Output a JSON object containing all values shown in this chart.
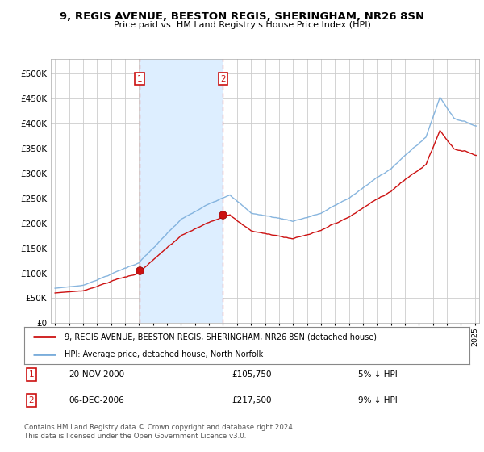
{
  "title": "9, REGIS AVENUE, BEESTON REGIS, SHERINGHAM, NR26 8SN",
  "subtitle": "Price paid vs. HM Land Registry's House Price Index (HPI)",
  "ytick_values": [
    0,
    50000,
    100000,
    150000,
    200000,
    250000,
    300000,
    350000,
    400000,
    450000,
    500000
  ],
  "ylim": [
    0,
    530000
  ],
  "t_sale1": 2001.04,
  "price_sale1": 105750,
  "t_sale2": 2007.0,
  "price_sale2": 217500,
  "legend_line1": "9, REGIS AVENUE, BEESTON REGIS, SHERINGHAM, NR26 8SN (detached house)",
  "legend_line2": "HPI: Average price, detached house, North Norfolk",
  "table_rows": [
    {
      "num": "1",
      "date": "20-NOV-2000",
      "price": "£105,750",
      "pct": "5% ↓ HPI"
    },
    {
      "num": "2",
      "date": "06-DEC-2006",
      "price": "£217,500",
      "pct": "9% ↓ HPI"
    }
  ],
  "footer": "Contains HM Land Registry data © Crown copyright and database right 2024.\nThis data is licensed under the Open Government Licence v3.0.",
  "hpi_color": "#7aaddb",
  "price_color": "#cc1111",
  "vline_color": "#e87070",
  "bg_color": "#ffffff",
  "plot_bg_color": "#ffffff",
  "shade_color": "#ddeeff",
  "grid_color": "#cccccc",
  "box_color": "#cc1111"
}
